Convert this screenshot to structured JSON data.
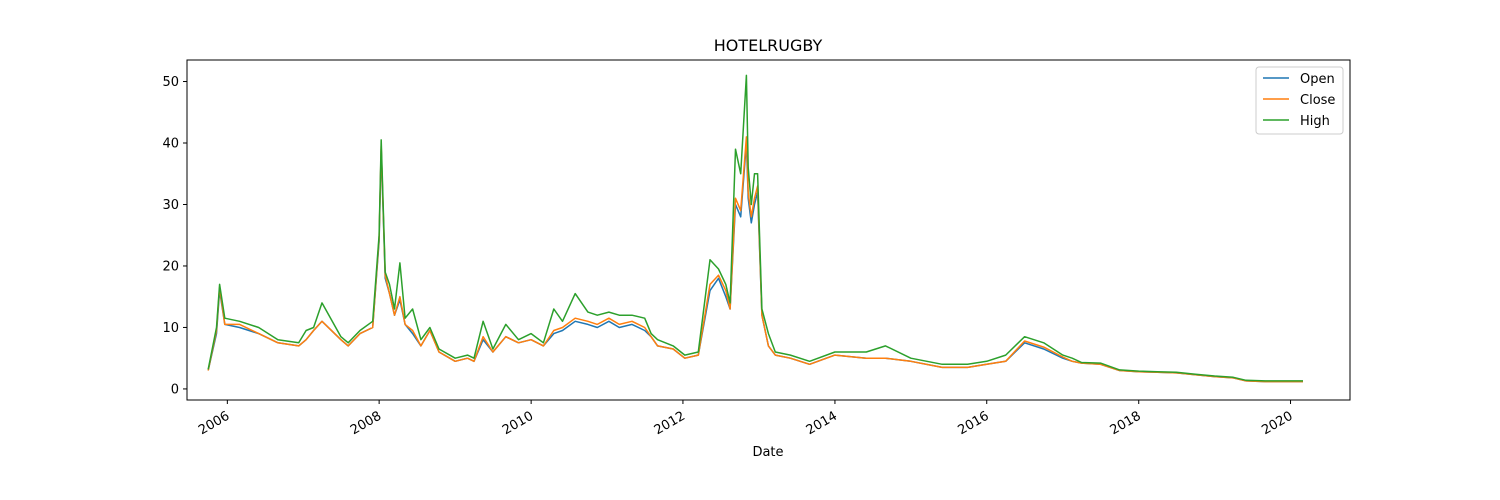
{
  "chart_data": {
    "type": "line",
    "title": "HOTELRUGBY",
    "xlabel": "Date",
    "ylabel": "",
    "xlim": [
      "2005-06-21",
      "2020-10-13"
    ],
    "ylim": [
      -1.8,
      53.5
    ],
    "x_ticks": [
      "2006",
      "2008",
      "2010",
      "2012",
      "2014",
      "2016",
      "2018",
      "2020"
    ],
    "y_ticks": [
      "0",
      "10",
      "20",
      "30",
      "40",
      "50"
    ],
    "grid": false,
    "legend_position": "top-right",
    "colors": {
      "Open": "#1f77b4",
      "Close": "#ff7f0e",
      "High": "#2ca02c"
    },
    "x": [
      "2005-10-01",
      "2005-11-10",
      "2005-11-25",
      "2005-12-20",
      "2006-03-01",
      "2006-06-01",
      "2006-09-01",
      "2006-12-10",
      "2007-01-15",
      "2007-02-20",
      "2007-04-01",
      "2007-07-01",
      "2007-08-05",
      "2007-10-01",
      "2007-12-01",
      "2008-01-01",
      "2008-01-11",
      "2008-01-30",
      "2008-02-20",
      "2008-03-15",
      "2008-04-10",
      "2008-05-05",
      "2008-06-10",
      "2008-07-20",
      "2008-09-01",
      "2008-10-15",
      "2009-01-01",
      "2009-03-01",
      "2009-04-01",
      "2009-05-15",
      "2009-07-01",
      "2009-09-01",
      "2009-11-01",
      "2010-01-01",
      "2010-03-01",
      "2010-04-20",
      "2010-06-01",
      "2010-08-01",
      "2010-10-01",
      "2010-11-15",
      "2011-01-10",
      "2011-03-01",
      "2011-05-01",
      "2011-07-01",
      "2011-08-01",
      "2011-09-01",
      "2011-11-15",
      "2012-01-10",
      "2012-03-15",
      "2012-05-10",
      "2012-06-20",
      "2012-07-25",
      "2012-08-15",
      "2012-09-10",
      "2012-10-05",
      "2012-11-01",
      "2012-11-10",
      "2012-11-25",
      "2012-12-10",
      "2012-12-25",
      "2013-01-15",
      "2013-02-15",
      "2013-03-20",
      "2013-06-01",
      "2013-09-01",
      "2014-01-01",
      "2014-06-01",
      "2014-09-01",
      "2015-01-01",
      "2015-06-01",
      "2015-10-01",
      "2016-01-01",
      "2016-04-01",
      "2016-07-01",
      "2016-10-01",
      "2017-01-01",
      "2017-02-15",
      "2017-04-01",
      "2017-07-01",
      "2017-10-01",
      "2018-01-01",
      "2018-04-01",
      "2018-07-01",
      "2018-10-01",
      "2019-01-01",
      "2019-04-01",
      "2019-06-01",
      "2019-09-01",
      "2020-03-01"
    ],
    "series": [
      {
        "name": "Open",
        "values": [
          3.0,
          9.0,
          16.0,
          10.5,
          10.0,
          9.0,
          7.5,
          7.0,
          8.0,
          9.5,
          11.0,
          8.0,
          7.0,
          9.0,
          10.0,
          24.0,
          39.0,
          18.0,
          15.5,
          12.0,
          14.5,
          10.5,
          9.0,
          7.0,
          9.5,
          6.0,
          4.5,
          5.0,
          4.5,
          8.0,
          6.0,
          8.5,
          7.5,
          8.0,
          7.0,
          9.0,
          9.5,
          11.0,
          10.5,
          10.0,
          11.0,
          10.0,
          10.5,
          9.5,
          8.5,
          7.0,
          6.5,
          5.0,
          5.5,
          16.0,
          18.0,
          15.0,
          13.0,
          30.0,
          28.0,
          40.0,
          31.0,
          27.0,
          30.0,
          32.0,
          12.0,
          7.0,
          5.5,
          5.0,
          4.0,
          5.5,
          5.0,
          5.0,
          4.5,
          3.5,
          3.5,
          4.0,
          4.5,
          7.5,
          6.5,
          5.0,
          4.5,
          4.2,
          4.0,
          3.0,
          2.8,
          2.7,
          2.6,
          2.3,
          2.0,
          1.8,
          1.3,
          1.2,
          1.2
        ]
      },
      {
        "name": "Close",
        "values": [
          3.0,
          9.5,
          16.5,
          10.5,
          10.5,
          9.0,
          7.5,
          7.0,
          8.0,
          9.5,
          11.0,
          8.0,
          7.0,
          9.0,
          10.0,
          24.5,
          39.5,
          18.5,
          15.5,
          12.0,
          15.0,
          10.5,
          9.5,
          7.0,
          9.5,
          6.0,
          4.5,
          5.0,
          4.5,
          8.5,
          6.0,
          8.5,
          7.5,
          8.0,
          7.0,
          9.5,
          10.0,
          11.5,
          11.0,
          10.5,
          11.5,
          10.5,
          11.0,
          10.0,
          8.5,
          7.0,
          6.5,
          5.0,
          5.5,
          17.0,
          18.5,
          16.0,
          13.0,
          31.0,
          29.0,
          41.0,
          32.0,
          28.0,
          31.0,
          33.0,
          12.0,
          7.0,
          5.5,
          5.0,
          4.0,
          5.5,
          5.0,
          5.0,
          4.5,
          3.5,
          3.5,
          4.0,
          4.5,
          7.8,
          6.8,
          5.2,
          4.5,
          4.2,
          4.0,
          3.0,
          2.8,
          2.7,
          2.6,
          2.3,
          2.0,
          1.8,
          1.3,
          1.2,
          1.2
        ]
      },
      {
        "name": "High",
        "values": [
          3.2,
          10.0,
          17.0,
          11.5,
          11.0,
          10.0,
          8.0,
          7.5,
          9.5,
          10.0,
          14.0,
          8.5,
          7.5,
          9.5,
          11.0,
          25.0,
          40.5,
          19.0,
          17.0,
          13.0,
          20.5,
          11.5,
          13.0,
          8.0,
          10.0,
          6.5,
          5.0,
          5.5,
          5.0,
          11.0,
          6.5,
          10.5,
          8.0,
          9.0,
          7.5,
          13.0,
          11.0,
          15.5,
          12.5,
          12.0,
          12.5,
          12.0,
          12.0,
          11.5,
          9.0,
          8.0,
          7.0,
          5.5,
          6.0,
          21.0,
          19.5,
          17.0,
          14.0,
          39.0,
          35.0,
          51.0,
          36.0,
          30.0,
          35.0,
          35.0,
          13.0,
          9.0,
          6.0,
          5.5,
          4.5,
          6.0,
          6.0,
          7.0,
          5.0,
          4.0,
          4.0,
          4.5,
          5.5,
          8.5,
          7.5,
          5.5,
          5.0,
          4.3,
          4.2,
          3.1,
          2.9,
          2.8,
          2.7,
          2.4,
          2.1,
          1.9,
          1.4,
          1.3,
          1.3
        ]
      }
    ]
  }
}
